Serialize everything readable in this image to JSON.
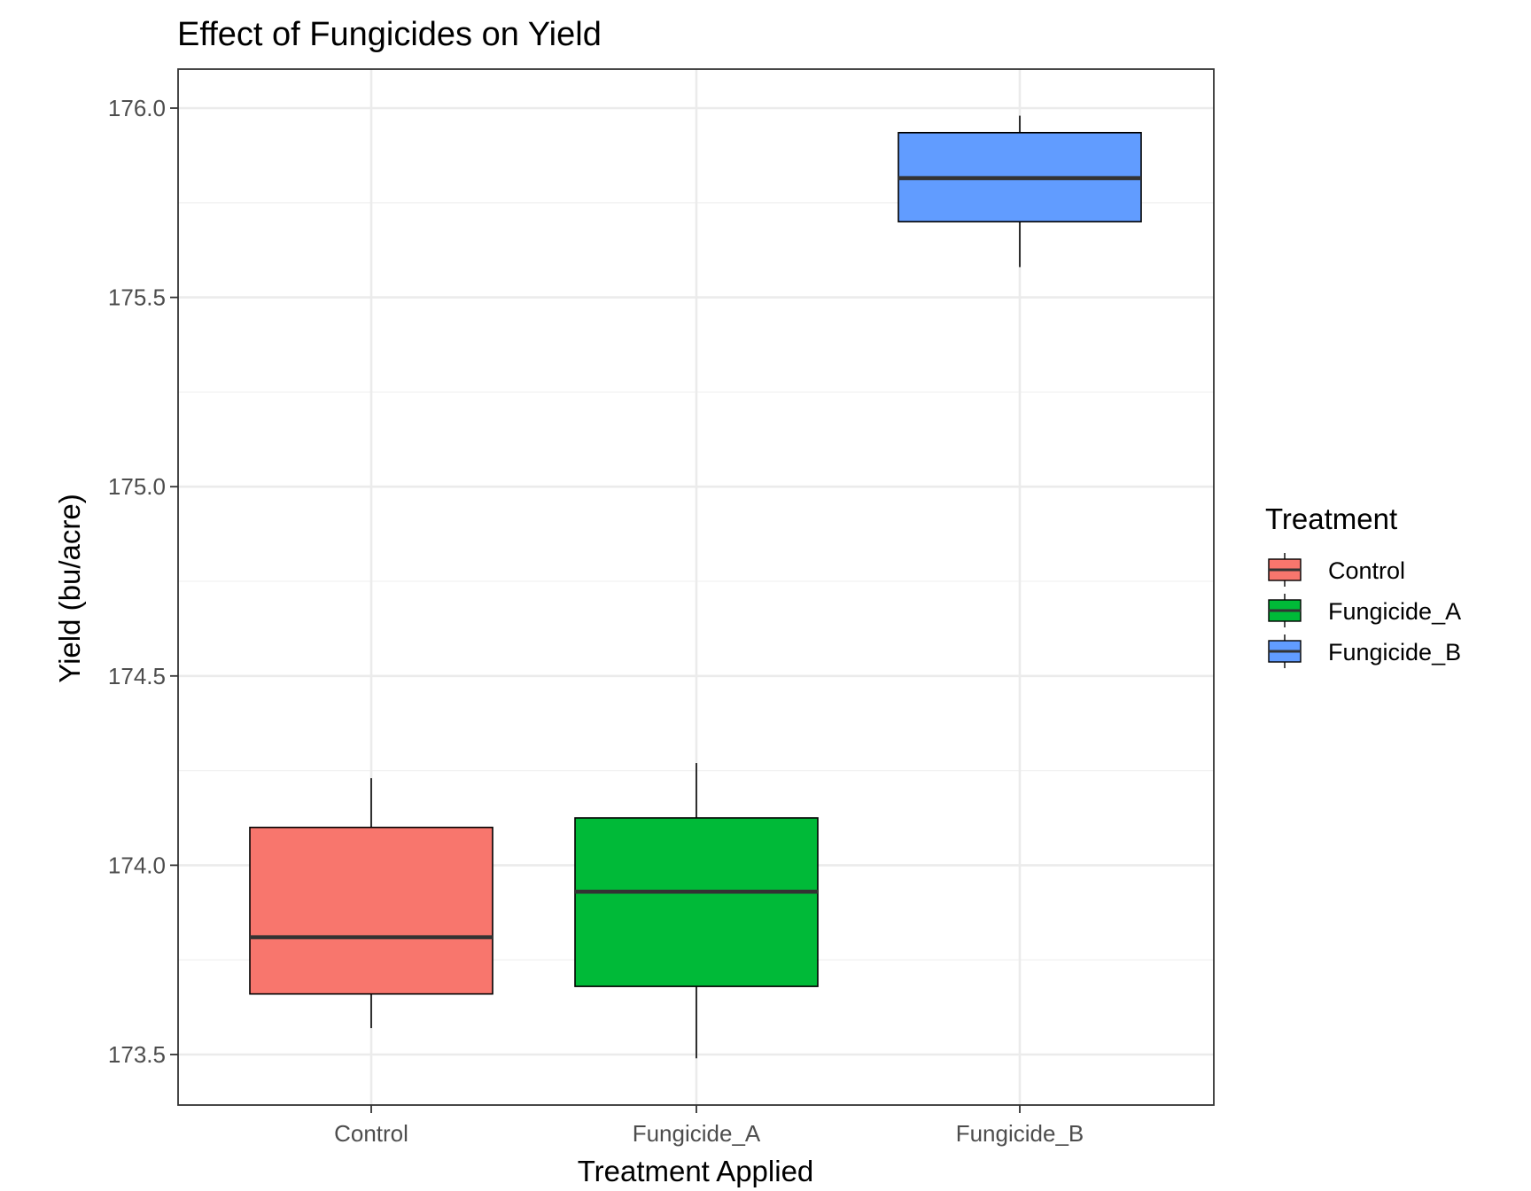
{
  "chart_data": {
    "type": "boxplot",
    "title": "Effect of Fungicides on Yield",
    "xlabel": "Treatment Applied",
    "ylabel": "Yield (bu/acre)",
    "categories": [
      "Control",
      "Fungicide_A",
      "Fungicide_B"
    ],
    "ylim": [
      173.37,
      176.1
    ],
    "y_ticks": [
      "173.5",
      "174.0",
      "174.5",
      "175.0",
      "175.5",
      "176.0"
    ],
    "grid": true,
    "legend": {
      "title": "Treatment",
      "placement": "right",
      "entries": [
        "Control",
        "Fungicide_A",
        "Fungicide_B"
      ]
    },
    "colors": {
      "Control": "#F8766D",
      "Fungicide_A": "#00BA38",
      "Fungicide_B": "#619CFF"
    },
    "boxes": [
      {
        "category": "Control",
        "min": 173.57,
        "q1": 173.66,
        "median": 173.81,
        "q3": 174.1,
        "max": 174.23
      },
      {
        "category": "Fungicide_A",
        "min": 173.49,
        "q1": 173.68,
        "median": 173.93,
        "q3": 174.125,
        "max": 174.27
      },
      {
        "category": "Fungicide_B",
        "min": 175.58,
        "q1": 175.7,
        "median": 175.815,
        "q3": 175.935,
        "max": 175.98
      }
    ]
  }
}
